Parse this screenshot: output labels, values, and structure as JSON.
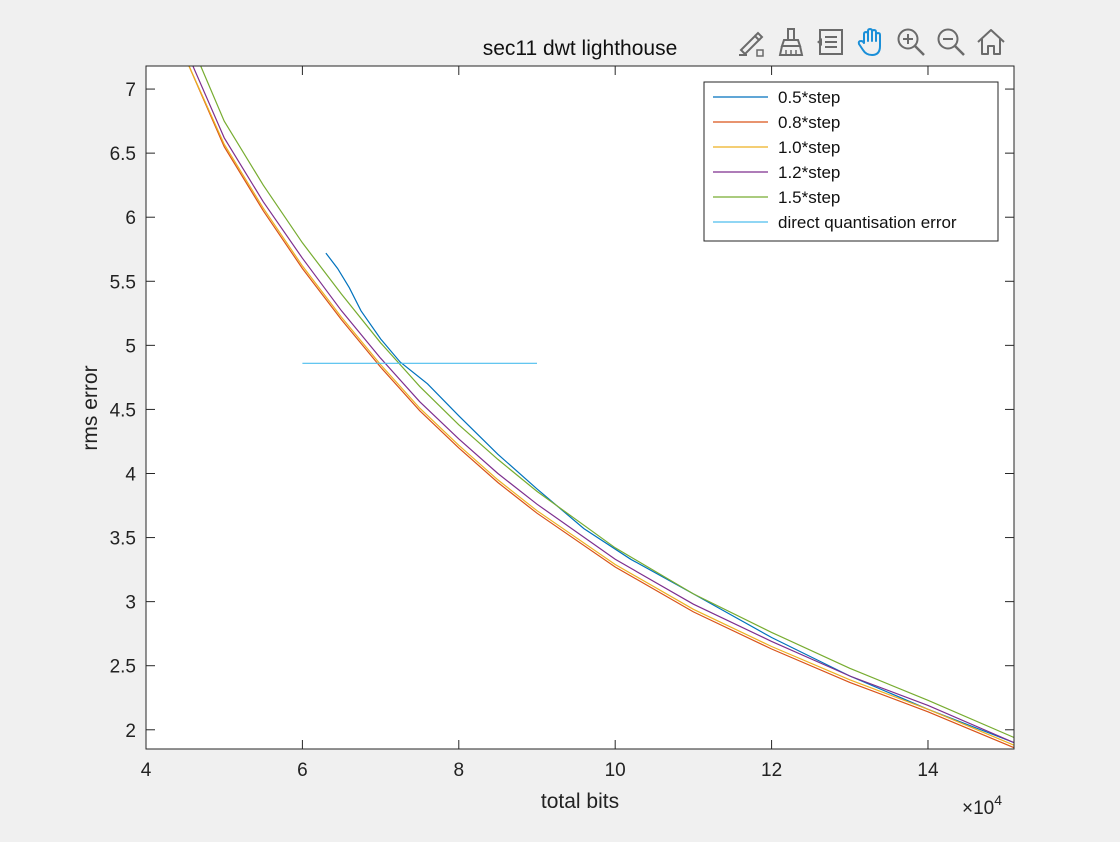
{
  "toolbar": {
    "items": [
      {
        "name": "edit-plot",
        "icon": "brush-edit-icon"
      },
      {
        "name": "data-cursor",
        "icon": "brush-icon"
      },
      {
        "name": "insert-legend",
        "icon": "legend-icon"
      },
      {
        "name": "pan",
        "icon": "hand-icon",
        "active": true
      },
      {
        "name": "zoom-in",
        "icon": "zoom-in-icon"
      },
      {
        "name": "zoom-out",
        "icon": "zoom-out-icon"
      },
      {
        "name": "restore-view",
        "icon": "home-icon"
      }
    ],
    "active_color": "#1a8fd8",
    "icon_color": "#6b6b6b"
  },
  "chart_data": {
    "type": "line",
    "title": "sec11 dwt lighthouse",
    "xlabel": "total bits",
    "ylabel": "rms error",
    "x_multiplier_label": {
      "base": "×10",
      "exp": "4"
    },
    "xlim": [
      4,
      15.1
    ],
    "ylim": [
      1.85,
      7.18
    ],
    "xticks": [
      4,
      6,
      8,
      10,
      12,
      14
    ],
    "yticks": [
      2,
      2.5,
      3,
      3.5,
      4,
      4.5,
      5,
      5.5,
      6,
      6.5,
      7
    ],
    "grid": false,
    "legend_position": "top-right",
    "series": [
      {
        "name": "0.5*step",
        "color": "#0072bd",
        "x": [
          6.3,
          6.45,
          6.6,
          6.75,
          7.0,
          7.25,
          7.6,
          8.0,
          8.5,
          9.0,
          9.6,
          10.2,
          11.0,
          12.0,
          13.0,
          14.0,
          15.1
        ],
        "y": [
          5.72,
          5.6,
          5.45,
          5.27,
          5.05,
          4.87,
          4.7,
          4.45,
          4.15,
          3.88,
          3.57,
          3.33,
          3.06,
          2.72,
          2.42,
          2.16,
          1.9
        ]
      },
      {
        "name": "0.8*step",
        "color": "#d95319",
        "x": [
          4.55,
          5.0,
          5.5,
          6.0,
          6.5,
          7.0,
          7.5,
          8.0,
          8.5,
          9.0,
          10.0,
          11.0,
          12.0,
          13.0,
          14.0,
          15.1
        ],
        "y": [
          7.18,
          6.55,
          6.05,
          5.6,
          5.2,
          4.83,
          4.49,
          4.2,
          3.93,
          3.69,
          3.27,
          2.92,
          2.63,
          2.37,
          2.14,
          1.86
        ]
      },
      {
        "name": "1.0*step",
        "color": "#edb120",
        "x": [
          4.55,
          5.0,
          5.5,
          6.0,
          6.5,
          7.0,
          7.5,
          8.0,
          8.5,
          9.0,
          10.0,
          11.0,
          12.0,
          13.0,
          14.0,
          15.1
        ],
        "y": [
          7.18,
          6.57,
          6.07,
          5.62,
          5.22,
          4.85,
          4.51,
          4.22,
          3.95,
          3.71,
          3.29,
          2.94,
          2.65,
          2.39,
          2.16,
          1.88
        ]
      },
      {
        "name": "1.2*step",
        "color": "#7e2f8e",
        "x": [
          4.6,
          5.0,
          5.5,
          6.0,
          6.5,
          7.0,
          7.5,
          8.0,
          8.5,
          9.0,
          10.0,
          11.0,
          12.0,
          13.0,
          14.0,
          15.1
        ],
        "y": [
          7.18,
          6.62,
          6.12,
          5.68,
          5.27,
          4.9,
          4.56,
          4.27,
          4.0,
          3.76,
          3.33,
          2.98,
          2.69,
          2.42,
          2.19,
          1.9
        ]
      },
      {
        "name": "1.5*step",
        "color": "#77ac30",
        "x": [
          4.7,
          5.0,
          5.5,
          6.0,
          6.5,
          7.0,
          7.5,
          8.0,
          8.5,
          9.0,
          10.0,
          11.0,
          12.0,
          13.0,
          14.0,
          15.1
        ],
        "y": [
          7.18,
          6.75,
          6.25,
          5.8,
          5.4,
          5.02,
          4.68,
          4.38,
          4.11,
          3.86,
          3.42,
          3.06,
          2.76,
          2.48,
          2.23,
          1.94
        ]
      },
      {
        "name": "direct quantisation error",
        "color": "#4dbeee",
        "x": [
          6.0,
          9.0
        ],
        "y": [
          4.86,
          4.86
        ]
      }
    ]
  }
}
